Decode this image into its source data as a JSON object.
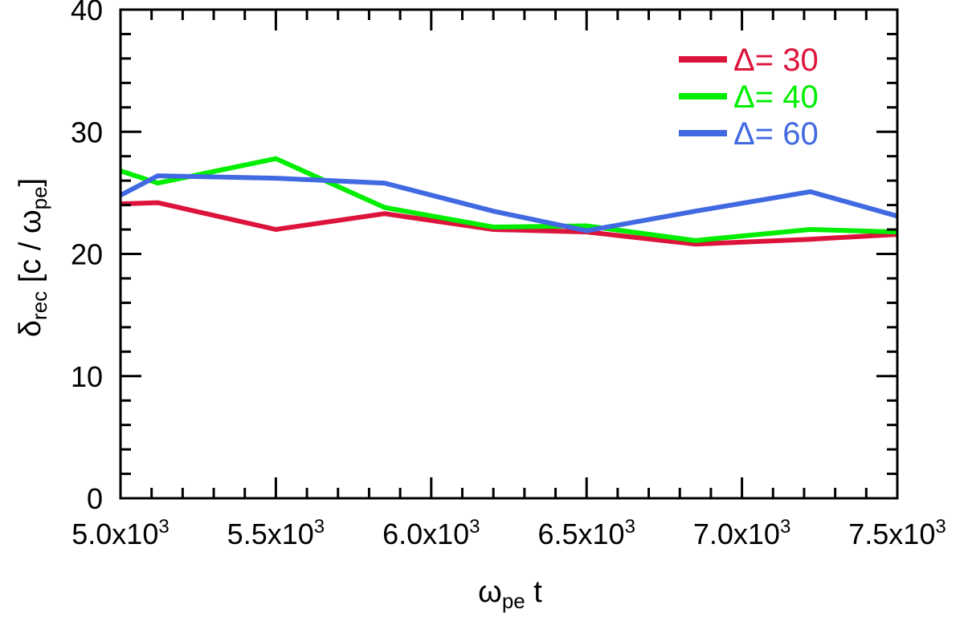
{
  "chart_data": {
    "type": "line",
    "xlabel": {
      "main": "ω",
      "sub": "pe",
      "tail": " t"
    },
    "ylabel": {
      "main": "δ",
      "sub": "rec",
      "mid": " [c / ω",
      "sub2": "pe",
      "end": "]"
    },
    "xlim": [
      5000,
      7500
    ],
    "ylim": [
      0,
      40
    ],
    "xticks": [
      {
        "value": 5000,
        "mantissa": "5.0x10",
        "exp": "3"
      },
      {
        "value": 5500,
        "mantissa": "5.5x10",
        "exp": "3"
      },
      {
        "value": 6000,
        "mantissa": "6.0x10",
        "exp": "3"
      },
      {
        "value": 6500,
        "mantissa": "6.5x10",
        "exp": "3"
      },
      {
        "value": 7000,
        "mantissa": "7.0x10",
        "exp": "3"
      },
      {
        "value": 7500,
        "mantissa": "7.5x10",
        "exp": "3"
      }
    ],
    "yticks": [
      {
        "value": 0,
        "label": "0"
      },
      {
        "value": 10,
        "label": "10"
      },
      {
        "value": 20,
        "label": "20"
      },
      {
        "value": 30,
        "label": "30"
      },
      {
        "value": 40,
        "label": "40"
      }
    ],
    "x_minor_step": 100,
    "y_minor_step": 2,
    "legend_position": "top-right",
    "series": [
      {
        "name": "Δ= 30",
        "color": "#DC143C",
        "x": [
          5000,
          5120,
          5500,
          5850,
          6200,
          6500,
          6850,
          7220,
          7500
        ],
        "y": [
          24.1,
          24.2,
          22.0,
          23.3,
          22.0,
          21.8,
          20.8,
          21.2,
          21.6
        ]
      },
      {
        "name": "Δ= 40",
        "color": "#00EE00",
        "x": [
          5000,
          5120,
          5500,
          5850,
          6200,
          6500,
          6850,
          7220,
          7500
        ],
        "y": [
          26.8,
          25.8,
          27.8,
          23.8,
          22.2,
          22.3,
          21.1,
          22.0,
          21.8
        ]
      },
      {
        "name": "Δ= 60",
        "color": "#4169E1",
        "x": [
          5000,
          5120,
          5500,
          5850,
          6200,
          6500,
          6850,
          7220,
          7500
        ],
        "y": [
          24.8,
          26.4,
          26.2,
          25.8,
          23.5,
          21.9,
          23.5,
          25.1,
          23.1
        ]
      }
    ]
  }
}
